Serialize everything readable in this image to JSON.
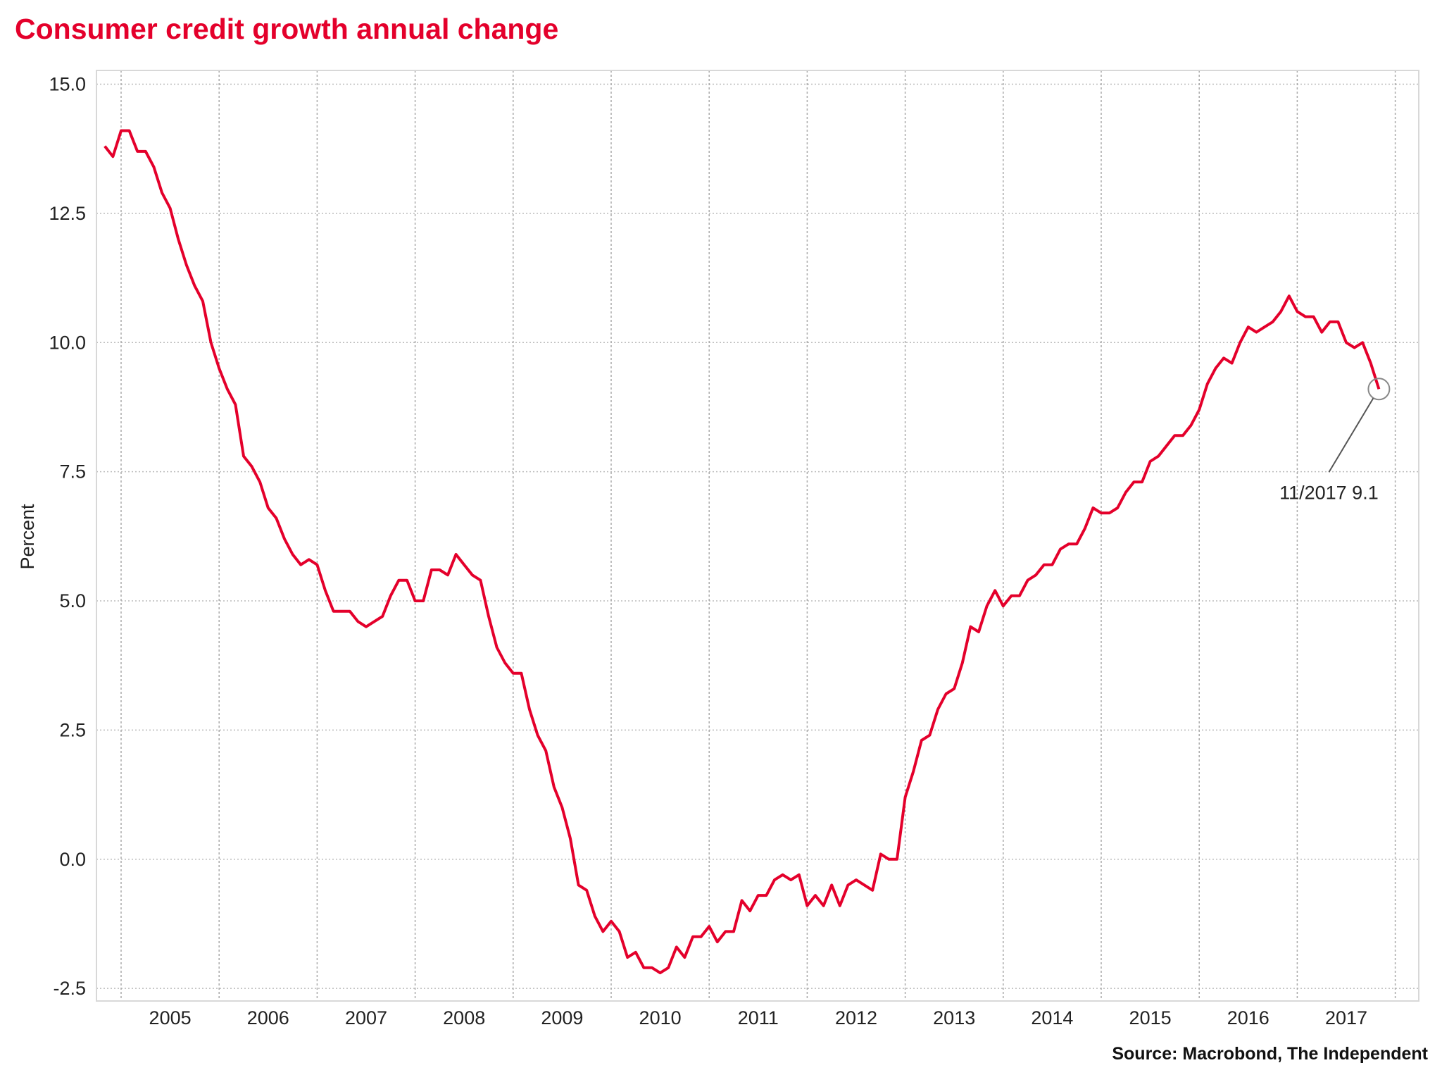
{
  "chart_data": {
    "type": "line",
    "title": "Consumer credit growth annual change",
    "xlabel": "",
    "ylabel": "Percent",
    "ylim": [
      -2.5,
      15.0
    ],
    "yticks": [
      "15.0",
      "12.5",
      "10.0",
      "7.5",
      "5.0",
      "2.5",
      "0.0",
      "-2.5"
    ],
    "xticks": [
      "2005",
      "2006",
      "2007",
      "2008",
      "2009",
      "2010",
      "2011",
      "2012",
      "2013",
      "2014",
      "2015",
      "2016",
      "2017"
    ],
    "grid": true,
    "x_start": "2004-11",
    "x_end": "2017-11",
    "frequency": "monthly",
    "color": "#e4002b",
    "values": [
      13.8,
      13.6,
      14.1,
      14.1,
      13.7,
      13.7,
      13.4,
      12.9,
      12.6,
      12.0,
      11.5,
      11.1,
      10.8,
      10.0,
      9.5,
      9.1,
      8.8,
      7.8,
      7.6,
      7.3,
      6.8,
      6.6,
      6.2,
      5.9,
      5.7,
      5.8,
      5.7,
      5.2,
      4.8,
      4.8,
      4.8,
      4.6,
      4.5,
      4.6,
      4.7,
      5.1,
      5.4,
      5.4,
      5.0,
      5.0,
      5.6,
      5.6,
      5.5,
      5.9,
      5.7,
      5.5,
      5.4,
      4.7,
      4.1,
      3.8,
      3.6,
      3.6,
      2.9,
      2.4,
      2.1,
      1.4,
      1.0,
      0.4,
      -0.5,
      -0.6,
      -1.1,
      -1.4,
      -1.2,
      -1.4,
      -1.9,
      -1.8,
      -2.1,
      -2.1,
      -2.2,
      -2.1,
      -1.7,
      -1.9,
      -1.5,
      -1.5,
      -1.3,
      -1.6,
      -1.4,
      -1.4,
      -0.8,
      -1.0,
      -0.7,
      -0.7,
      -0.4,
      -0.3,
      -0.4,
      -0.3,
      -0.9,
      -0.7,
      -0.9,
      -0.5,
      -0.9,
      -0.5,
      -0.4,
      -0.5,
      -0.6,
      0.1,
      0.0,
      0.0,
      1.2,
      1.7,
      2.3,
      2.4,
      2.9,
      3.2,
      3.3,
      3.8,
      4.5,
      4.4,
      4.9,
      5.2,
      4.9,
      5.1,
      5.1,
      5.4,
      5.5,
      5.7,
      5.7,
      6.0,
      6.1,
      6.1,
      6.4,
      6.8,
      6.7,
      6.7,
      6.8,
      7.1,
      7.3,
      7.3,
      7.7,
      7.8,
      8.0,
      8.2,
      8.2,
      8.4,
      8.7,
      9.2,
      9.5,
      9.7,
      9.6,
      10.0,
      10.3,
      10.2,
      10.3,
      10.4,
      10.6,
      10.9,
      10.6,
      10.5,
      10.5,
      10.2,
      10.4,
      10.4,
      10.0,
      9.9,
      10.0,
      9.6,
      9.1
    ],
    "annotation": {
      "label": "11/2017 9.1",
      "date": "2017-11",
      "value": 9.1
    },
    "source": "Source: Macrobond, The Independent"
  }
}
